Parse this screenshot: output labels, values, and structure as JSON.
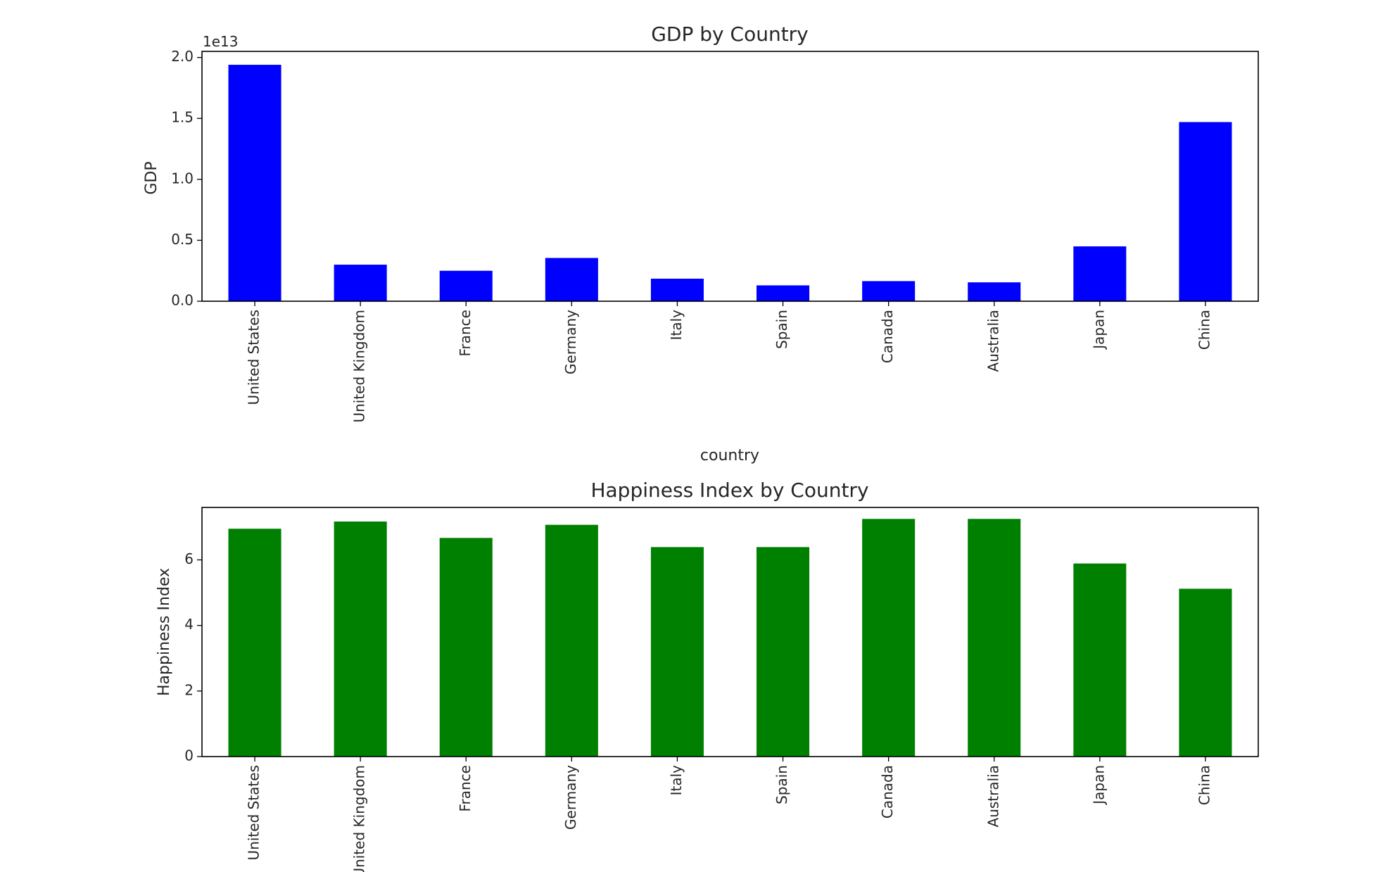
{
  "chart_data": [
    {
      "type": "bar",
      "title": "GDP by Country",
      "xlabel": "country",
      "ylabel": "GDP",
      "offset_text": "1e13",
      "ylim": [
        0,
        20500000000000.0
      ],
      "yticks": [
        0,
        5000000000000.0,
        10000000000000.0,
        15000000000000.0,
        20000000000000.0
      ],
      "ytick_labels": [
        "0.0",
        "0.5",
        "1.0",
        "1.5",
        "2.0"
      ],
      "categories": [
        "United States",
        "United Kingdom",
        "France",
        "Germany",
        "Italy",
        "Spain",
        "Canada",
        "Australia",
        "Japan",
        "China"
      ],
      "values": [
        19400000000000.0,
        3000000000000.0,
        2500000000000.0,
        3550000000000.0,
        1850000000000.0,
        1300000000000.0,
        1650000000000.0,
        1550000000000.0,
        4500000000000.0,
        14700000000000.0
      ],
      "color": "#0000ff",
      "grid": false
    },
    {
      "type": "bar",
      "title": "Happiness Index by Country",
      "xlabel": "",
      "ylabel": "Happiness Index",
      "ylim": [
        0,
        7.6
      ],
      "yticks": [
        0,
        2,
        4,
        6
      ],
      "ytick_labels": [
        "0",
        "2",
        "4",
        "6"
      ],
      "categories": [
        "United States",
        "United Kingdom",
        "France",
        "Germany",
        "Italy",
        "Spain",
        "Canada",
        "Australia",
        "Japan",
        "China"
      ],
      "values": [
        6.95,
        7.17,
        6.67,
        7.07,
        6.39,
        6.39,
        7.25,
        7.25,
        5.89,
        5.12
      ],
      "color": "#008000",
      "grid": false
    }
  ]
}
